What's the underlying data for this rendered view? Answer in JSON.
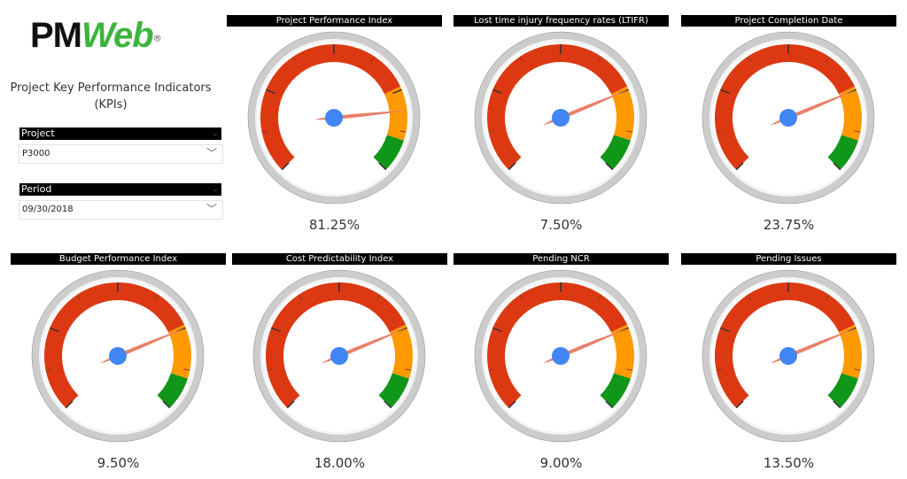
{
  "logo": {
    "text_pm": "PM",
    "text_web": "Web",
    "mark": "®"
  },
  "sidebar": {
    "title": "Project Key Performance Indicators (KPIs)",
    "project": {
      "label": "Project",
      "value": "P3000"
    },
    "period": {
      "label": "Period",
      "value": "09/30/2018"
    }
  },
  "colors": {
    "red": "#dc3912",
    "orange": "#ff9900",
    "green": "#109618",
    "needle": "#e8806a",
    "hub": "#4285f4",
    "bezel": "#cccccc"
  },
  "gauge_scale": {
    "min": 0,
    "max": 100,
    "min_label": "0.00",
    "max_label": "100.00",
    "bands": [
      {
        "from": 0,
        "to": 74,
        "color": "red"
      },
      {
        "from": 74,
        "to": 90,
        "color": "orange"
      },
      {
        "from": 90,
        "to": 100,
        "color": "green"
      }
    ]
  },
  "gauges": [
    {
      "title": "Project Performance Index",
      "value": 81.25,
      "value_label": "81.25",
      "percent": "81.25%"
    },
    {
      "title": "Lost time injury frequency rates (LTIFR)",
      "value": 75,
      "value_label": "75.00",
      "percent": "7.50%"
    },
    {
      "title": "Project Completion Date",
      "value": 75,
      "value_label": "75.00",
      "percent": "23.75%"
    },
    {
      "title": "Budget Performance Index",
      "value": 75,
      "value_label": "75.00",
      "percent": "9.50%"
    },
    {
      "title": "Cost Predictability Index",
      "value": 75,
      "value_label": "75.00",
      "percent": "18.00%"
    },
    {
      "title": "Pending NCR",
      "value": 75,
      "value_label": "75.00",
      "percent": "9.00%"
    },
    {
      "title": "Pending Issues",
      "value": 75,
      "value_label": "75.00",
      "percent": "13.50%"
    }
  ]
}
